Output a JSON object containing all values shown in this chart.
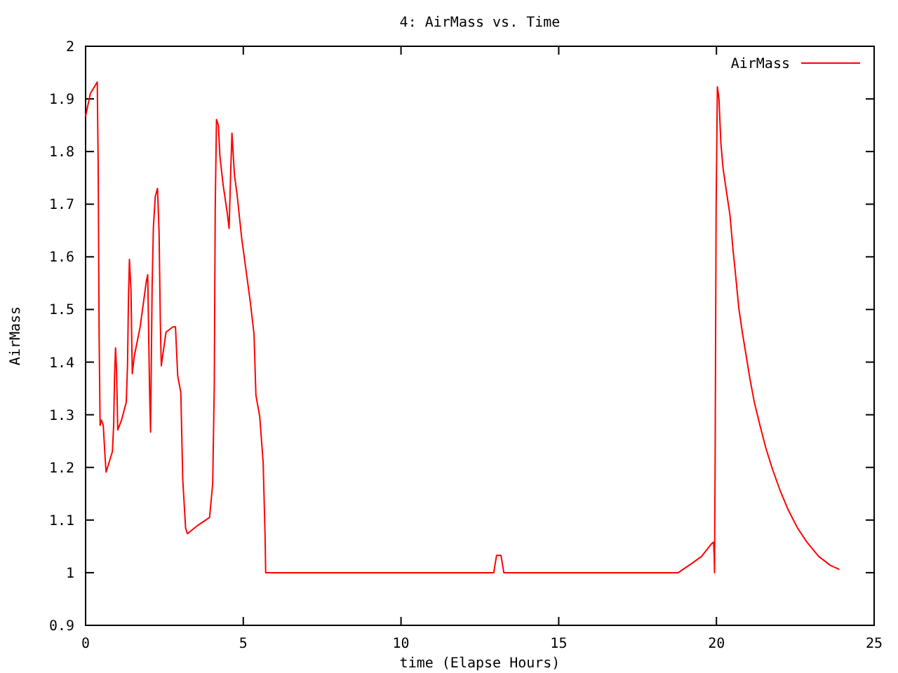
{
  "chart_data": {
    "type": "line",
    "title": "4: AirMass vs. Time",
    "xlabel": "time (Elapse Hours)",
    "ylabel": "AirMass",
    "xlim": [
      0,
      25
    ],
    "xticks": [
      0,
      5,
      10,
      15,
      20,
      25
    ],
    "ylim": [
      0.9,
      2
    ],
    "yticks": [
      0.9,
      1,
      1.1,
      1.2,
      1.3,
      1.4,
      1.5,
      1.6,
      1.7,
      1.8,
      1.9,
      2
    ],
    "grid": false,
    "legend": "top right",
    "series": [
      {
        "name": "AirMass",
        "color": "#ff0000",
        "x": [
          0,
          0.15,
          0.37,
          0.4,
          0.43,
          0.46,
          0.5,
          0.56,
          0.62,
          0.65,
          0.85,
          0.89,
          0.92,
          0.95,
          0.98,
          1.02,
          1.14,
          1.29,
          1.33,
          1.36,
          1.39,
          1.44,
          1.48,
          1.54,
          1.73,
          1.93,
          1.97,
          1.99,
          2.03,
          2.06,
          2.11,
          2.15,
          2.21,
          2.28,
          2.33,
          2.37,
          2.4,
          2.55,
          2.77,
          2.85,
          2.92,
          3.02,
          3.08,
          3.17,
          3.23,
          3.56,
          3.93,
          4.03,
          4.08,
          4.11,
          4.15,
          4.21,
          4.26,
          4.36,
          4.48,
          4.55,
          4.6,
          4.64,
          4.72,
          4.8,
          4.95,
          5.22,
          5.34,
          5.4,
          5.52,
          5.63,
          5.69,
          5.71,
          12.94,
          13.03,
          13.17,
          13.26,
          18.79,
          19.23,
          19.53,
          19.83,
          19.91,
          19.93,
          19.94,
          19.96,
          19.99,
          20.03,
          20.08,
          20.14,
          20.21,
          20.33,
          20.43,
          20.52,
          20.61,
          20.71,
          20.82,
          20.94,
          21.06,
          21.2,
          21.38,
          21.57,
          21.78,
          22.02,
          22.27,
          22.57,
          22.87,
          23.24,
          23.61,
          23.9
        ],
        "values": [
          1.867,
          1.91,
          1.932,
          1.77,
          1.446,
          1.28,
          1.29,
          1.28,
          1.218,
          1.191,
          1.23,
          1.28,
          1.377,
          1.427,
          1.387,
          1.271,
          1.29,
          1.324,
          1.396,
          1.524,
          1.595,
          1.535,
          1.378,
          1.41,
          1.467,
          1.555,
          1.566,
          1.49,
          1.342,
          1.267,
          1.545,
          1.657,
          1.715,
          1.73,
          1.646,
          1.475,
          1.393,
          1.457,
          1.467,
          1.467,
          1.374,
          1.342,
          1.178,
          1.085,
          1.074,
          1.09,
          1.105,
          1.169,
          1.355,
          1.693,
          1.861,
          1.85,
          1.79,
          1.737,
          1.688,
          1.654,
          1.76,
          1.835,
          1.755,
          1.72,
          1.635,
          1.515,
          1.453,
          1.337,
          1.297,
          1.209,
          1.071,
          1,
          1,
          1.033,
          1.033,
          1,
          1,
          1.018,
          1.031,
          1.054,
          1.058,
          1.031,
          1,
          1.231,
          1.693,
          1.923,
          1.901,
          1.817,
          1.768,
          1.719,
          1.679,
          1.617,
          1.564,
          1.502,
          1.457,
          1.413,
          1.369,
          1.324,
          1.28,
          1.236,
          1.196,
          1.156,
          1.12,
          1.085,
          1.058,
          1.031,
          1.014,
          1.006
        ]
      }
    ]
  }
}
